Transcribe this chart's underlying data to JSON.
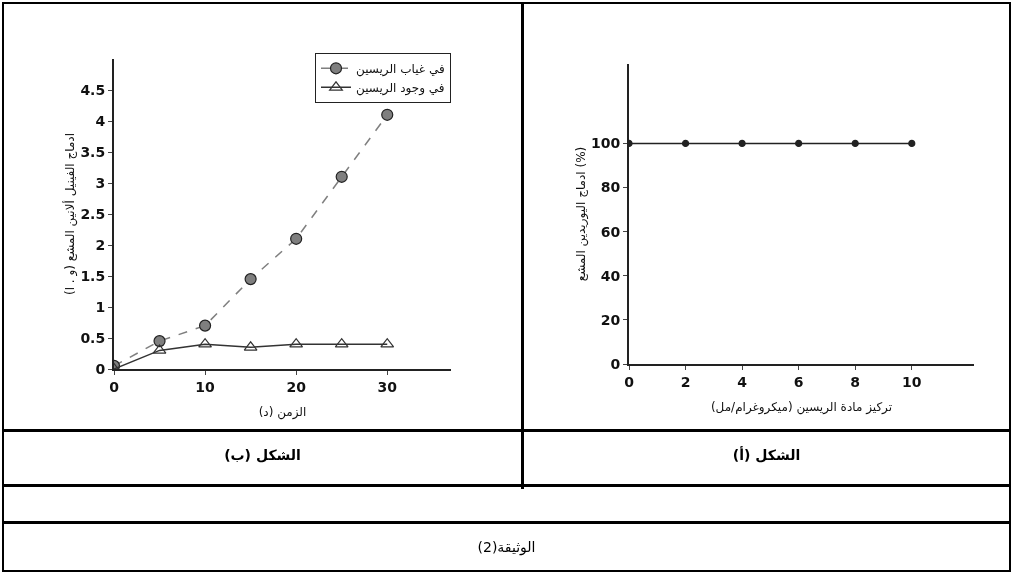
{
  "chart_data": [
    {
      "type": "line",
      "title": "الشكل (أ)",
      "xlabel": "تركيز مادة الريسين (ميكروغرام/مل)",
      "ylabel": "ادماج اليوريدين المشع (%)",
      "x": [
        0,
        2,
        4,
        6,
        8,
        10
      ],
      "values": [
        100,
        100,
        100,
        100,
        100,
        100
      ],
      "color": "#222222",
      "marker": "circle",
      "xlim": [
        0,
        12.2
      ],
      "ylim": [
        0,
        136
      ],
      "xticks": [
        0,
        2,
        4,
        6,
        8,
        10
      ],
      "yticks": [
        0,
        20,
        40,
        60,
        80,
        100
      ],
      "annotations": [
        "الوثيقة(2)"
      ]
    },
    {
      "type": "line",
      "title": "الشكل (ب)",
      "xlabel": "الزمن (د)",
      "ylabel": "ادماج الفينيل ألانين المشع (و . ا)",
      "x": [
        0,
        5,
        10,
        15,
        20,
        25,
        30
      ],
      "xlim": [
        0,
        37
      ],
      "ylim": [
        0,
        5
      ],
      "xticks": [
        0,
        10,
        20,
        30
      ],
      "yticks": [
        0,
        0.5,
        1,
        1.5,
        2,
        2.5,
        3,
        3.5,
        4,
        4.5
      ],
      "legend": "top right",
      "series": [
        {
          "name": "في غياب الريسين",
          "color": "#7f7f7f",
          "marker": "circle",
          "line_style": "dashed",
          "values": [
            0.05,
            0.45,
            0.7,
            1.45,
            2.1,
            3.1,
            4.1
          ]
        },
        {
          "name": "في وجود الريسين",
          "color": "#333333",
          "marker": "triangle",
          "line_style": "solid",
          "values": [
            0,
            0.3,
            0.4,
            0.35,
            0.4,
            0.4,
            0.4
          ]
        }
      ]
    }
  ]
}
